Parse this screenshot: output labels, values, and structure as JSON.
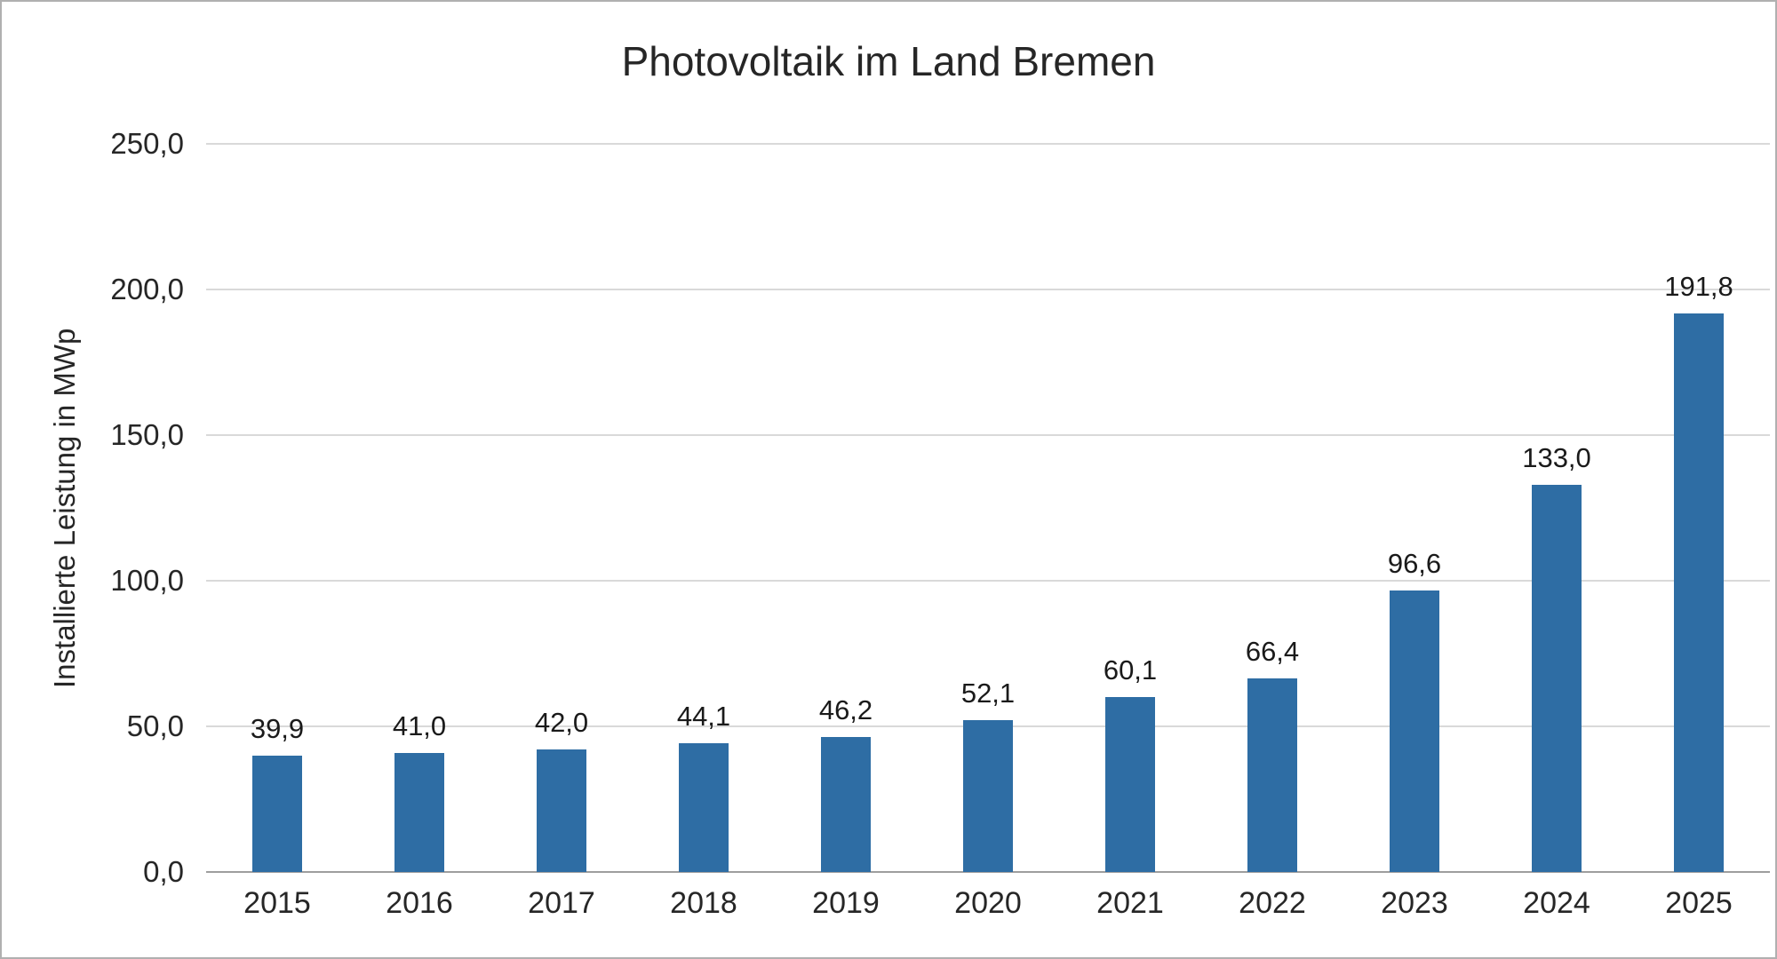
{
  "chart_data": {
    "type": "bar",
    "title": "Photovoltaik im Land Bremen",
    "ylabel": "Installierte Leistung in MWp",
    "xlabel": "",
    "categories": [
      "2015",
      "2016",
      "2017",
      "2018",
      "2019",
      "2020",
      "2021",
      "2022",
      "2023",
      "2024",
      "2025"
    ],
    "values": [
      39.9,
      41.0,
      42.0,
      44.1,
      46.2,
      52.1,
      60.1,
      66.4,
      96.6,
      133.0,
      191.8
    ],
    "value_labels": [
      "39,9",
      "41,0",
      "42,0",
      "44,1",
      "46,2",
      "52,1",
      "60,1",
      "66,4",
      "96,6",
      "133,0",
      "191,8"
    ],
    "ylim": [
      0,
      250
    ],
    "ytick_step": 50,
    "ytick_labels": [
      "0,0",
      "50,0",
      "100,0",
      "150,0",
      "200,0",
      "250,0"
    ],
    "grid": true,
    "legend": "none",
    "bar_color": "#2E6DA4",
    "grid_color": "#D9D9D9",
    "axis_color": "#9E9E9E"
  }
}
